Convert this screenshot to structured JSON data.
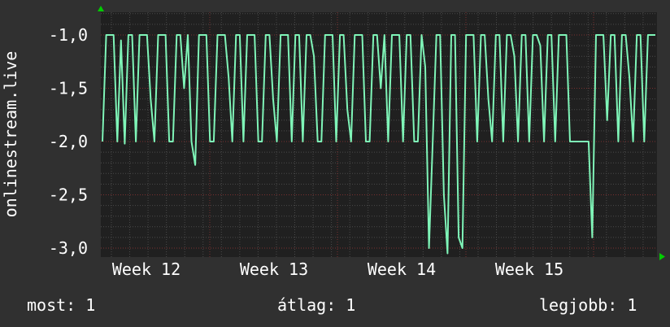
{
  "chart_data": {
    "type": "line",
    "ylabel": "onlinestream.live",
    "xlabel": "",
    "ylim": [
      -3.08,
      -0.79
    ],
    "yticks": [
      "-1,0",
      "-1,5",
      "-2,0",
      "-2,5",
      "-3,0"
    ],
    "ytick_values": [
      -1.0,
      -1.5,
      -2.0,
      -2.5,
      -3.0
    ],
    "xticks": [
      "Week 12",
      "Week 13",
      "Week 14",
      "Week 15"
    ],
    "grid": true,
    "colors": {
      "line": "#7ff5b8",
      "background": "#303030",
      "plot_background": "#202020",
      "major_grid": "#7a3030",
      "minor_grid": "#555555",
      "arrow": "#00cc00"
    },
    "series": [
      {
        "values": [
          -2,
          -1,
          -1,
          -1,
          -2,
          -1.05,
          -2.02,
          -1,
          -1,
          -2,
          -1,
          -1,
          -1,
          -1.6,
          -2,
          -1,
          -1,
          -1,
          -2,
          -2,
          -1,
          -1,
          -1.5,
          -1,
          -2,
          -2.22,
          -1,
          -1,
          -1,
          -2,
          -2,
          -1,
          -1,
          -1,
          -1.4,
          -2,
          -1,
          -1,
          -2,
          -1,
          -1,
          -1,
          -2,
          -2,
          -1,
          -1,
          -1.6,
          -2,
          -1,
          -1,
          -1,
          -2,
          -1,
          -1,
          -2,
          -1,
          -1,
          -1.2,
          -2,
          -2,
          -1,
          -1,
          -1,
          -2,
          -1,
          -1,
          -1.7,
          -2,
          -1,
          -1,
          -1,
          -2,
          -2,
          -1,
          -1,
          -1.5,
          -1,
          -2,
          -1,
          -1,
          -1,
          -2,
          -1,
          -1,
          -2,
          -2,
          -1,
          -1.3,
          -3,
          -2,
          -1,
          -1,
          -2.5,
          -3.05,
          -1,
          -1,
          -2.9,
          -3.0,
          -1,
          -1,
          -1,
          -2,
          -1,
          -1,
          -1.6,
          -2,
          -1,
          -1,
          -2,
          -1,
          -1,
          -1.2,
          -2,
          -1,
          -1,
          -2,
          -1,
          -1,
          -1.1,
          -2,
          -1,
          -1,
          -2,
          -1,
          -1,
          -1,
          -2,
          -2,
          -2,
          -2,
          -2,
          -2,
          -2.9,
          -1,
          -1,
          -1,
          -1.8,
          -1,
          -1,
          -2,
          -1,
          -1,
          -1.4,
          -2,
          -1,
          -1,
          -2,
          -1,
          -1,
          -1
        ]
      }
    ]
  },
  "legend": {
    "current": "most: 1",
    "average": "átlag: 1",
    "max": "legjobb: 1"
  }
}
